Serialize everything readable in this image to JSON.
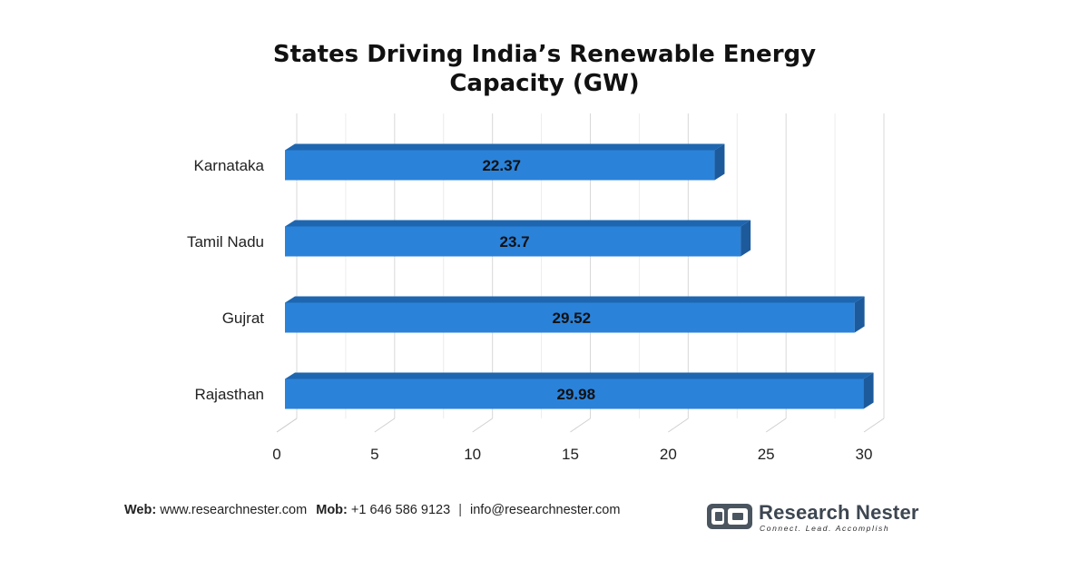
{
  "chart_data": {
    "type": "bar",
    "orientation": "horizontal",
    "title_lines": [
      "States Driving India’s Renewable Energy",
      "Capacity (GW)"
    ],
    "categories": [
      "Karnataka",
      "Tamil Nadu",
      "Gujrat",
      "Rajasthan"
    ],
    "values": [
      22.37,
      23.7,
      29.52,
      29.98
    ],
    "data_labels": [
      "22.37",
      "23.7",
      "29.52",
      "29.98"
    ],
    "xlim": [
      0,
      30
    ],
    "xticks": [
      "0",
      "5",
      "10",
      "15",
      "20",
      "25",
      "30"
    ],
    "grid": true,
    "bar_color": "#2b82d9",
    "bar_side_color": "#1c5a9c",
    "bar_top_color": "#1e66b0"
  },
  "footer": {
    "web_label": "Web:",
    "web_value": "www.researchnester.com",
    "mob_label": "Mob:",
    "mob_value": "+1 646 586 9123",
    "separator": "|",
    "email": "info@researchnester.com"
  },
  "logo": {
    "name": "Research Nester",
    "tagline": "Connect. Lead. Accomplish",
    "icon": "research-nester-logo-icon"
  }
}
